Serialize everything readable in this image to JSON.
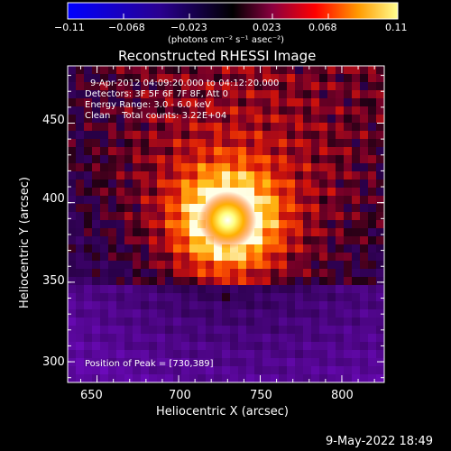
{
  "colorbar": {
    "ticks": [
      "−0.11",
      "−0.068",
      "−0.023",
      "0.023",
      "0.068",
      "0.11"
    ],
    "units": "(photons cm⁻² s⁻¹ asec⁻²)"
  },
  "title": "Reconstructed RHESSI Image",
  "annotations": {
    "time_range": "9-Apr-2012 04:09:20.000 to 04:12:20.000",
    "detectors": "Detectors: 3F 5F 6F 7F 8F, Att 0",
    "energy": "Energy Range: 3.0 - 6.0 keV",
    "method": "Clean    Total counts: 3.22E+04",
    "peak": "Position of Peak = [730,389]"
  },
  "x_axis": {
    "label": "Heliocentric X (arcsec)",
    "ticks": [
      "650",
      "700",
      "750",
      "800"
    ]
  },
  "y_axis": {
    "label": "Heliocentric Y (arcsec)",
    "ticks": [
      "300",
      "350",
      "400",
      "450"
    ]
  },
  "timestamp": "9-May-2022 18:49",
  "image": {
    "colormap": "black-purple-red-orange-yellow-white",
    "peak_position": [
      730,
      389
    ],
    "x_range": [
      632,
      826
    ],
    "y_range": [
      287,
      486
    ]
  }
}
